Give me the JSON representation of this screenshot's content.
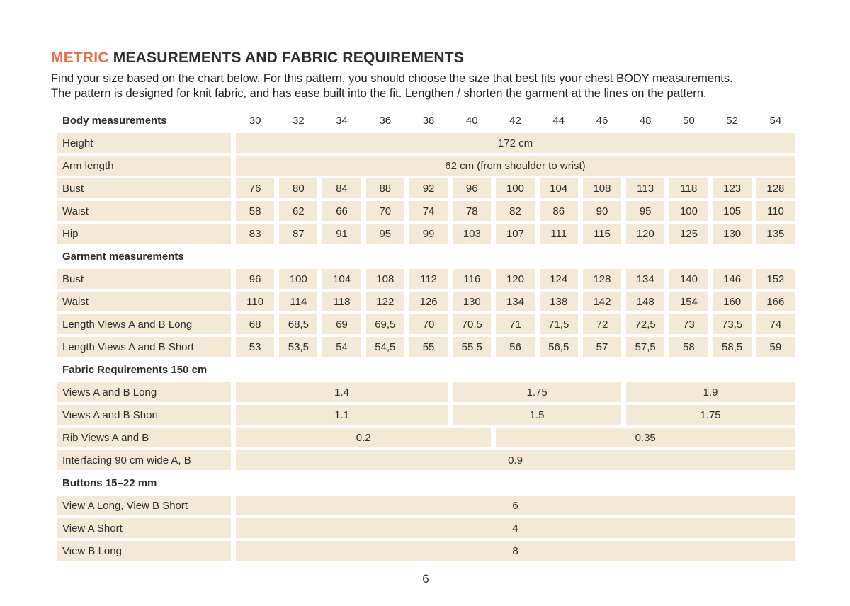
{
  "header": {
    "title_accent": "METRIC",
    "title_rest": " MEASUREMENTS AND FABRIC REQUIREMENTS",
    "intro_line1": "Find your size based on the chart below. For this pattern, you should choose the size that best fits your chest BODY measurements.",
    "intro_line2": "The pattern is designed for knit fabric, and has ease built into the fit. Lengthen / shorten the garment at the lines on the pattern."
  },
  "colors": {
    "accent": "#DF7148",
    "cell_bg": "#F3E9D6",
    "text": "#2E2D2B"
  },
  "table": {
    "rows": [
      {
        "type": "header",
        "label": "Body measurements",
        "cells": [
          "30",
          "32",
          "34",
          "36",
          "38",
          "40",
          "42",
          "44",
          "46",
          "48",
          "50",
          "52",
          "54"
        ]
      },
      {
        "type": "data",
        "label": "Height",
        "span_cells": [
          {
            "span": 13,
            "value": "172 cm"
          }
        ]
      },
      {
        "type": "data",
        "label": "Arm length",
        "span_cells": [
          {
            "span": 13,
            "value": "62 cm (from shoulder to wrist)"
          }
        ]
      },
      {
        "type": "data",
        "label": "Bust",
        "cells": [
          "76",
          "80",
          "84",
          "88",
          "92",
          "96",
          "100",
          "104",
          "108",
          "113",
          "118",
          "123",
          "128"
        ]
      },
      {
        "type": "data",
        "label": "Waist",
        "cells": [
          "58",
          "62",
          "66",
          "70",
          "74",
          "78",
          "82",
          "86",
          "90",
          "95",
          "100",
          "105",
          "110"
        ]
      },
      {
        "type": "data",
        "label": "Hip",
        "cells": [
          "83",
          "87",
          "91",
          "95",
          "99",
          "103",
          "107",
          "111",
          "115",
          "120",
          "125",
          "130",
          "135"
        ]
      },
      {
        "type": "section",
        "label": "Garment measurements"
      },
      {
        "type": "data",
        "label": "Bust",
        "cells": [
          "96",
          "100",
          "104",
          "108",
          "112",
          "116",
          "120",
          "124",
          "128",
          "134",
          "140",
          "146",
          "152"
        ]
      },
      {
        "type": "data",
        "label": "Waist",
        "cells": [
          "110",
          "114",
          "118",
          "122",
          "126",
          "130",
          "134",
          "138",
          "142",
          "148",
          "154",
          "160",
          "166"
        ]
      },
      {
        "type": "data",
        "label": "Length Views A and B Long",
        "cells": [
          "68",
          "68,5",
          "69",
          "69,5",
          "70",
          "70,5",
          "71",
          "71,5",
          "72",
          "72,5",
          "73",
          "73,5",
          "74"
        ]
      },
      {
        "type": "data",
        "label": "Length Views A and B Short",
        "cells": [
          "53",
          "53,5",
          "54",
          "54,5",
          "55",
          "55,5",
          "56",
          "56,5",
          "57",
          "57,5",
          "58",
          "58,5",
          "59"
        ]
      },
      {
        "type": "section",
        "label": "Fabric Requirements 150 cm"
      },
      {
        "type": "data",
        "label": "Views A and B Long",
        "span_cells": [
          {
            "span": 5,
            "value": "1.4"
          },
          {
            "span": 4,
            "value": "1.75"
          },
          {
            "span": 4,
            "value": "1.9"
          }
        ]
      },
      {
        "type": "data",
        "label": "Views A and B Short",
        "span_cells": [
          {
            "span": 5,
            "value": "1.1"
          },
          {
            "span": 4,
            "value": "1.5"
          },
          {
            "span": 4,
            "value": "1.75"
          }
        ]
      },
      {
        "type": "data",
        "label": "Rib Views A and B",
        "span_cells": [
          {
            "span": 6,
            "value": "0.2"
          },
          {
            "span": 7,
            "value": "0.35"
          }
        ]
      },
      {
        "type": "data",
        "label": "Interfacing 90 cm wide A, B",
        "span_cells": [
          {
            "span": 13,
            "value": "0.9"
          }
        ]
      },
      {
        "type": "section",
        "label": "Buttons 15–22 mm"
      },
      {
        "type": "data",
        "label": "View A Long, View B Short",
        "span_cells": [
          {
            "span": 13,
            "value": "6"
          }
        ]
      },
      {
        "type": "data",
        "label": "View A Short",
        "span_cells": [
          {
            "span": 13,
            "value": "4"
          }
        ]
      },
      {
        "type": "data",
        "label": "View B Long",
        "span_cells": [
          {
            "span": 13,
            "value": "8"
          }
        ]
      }
    ]
  },
  "footer": {
    "page_number": "6"
  }
}
